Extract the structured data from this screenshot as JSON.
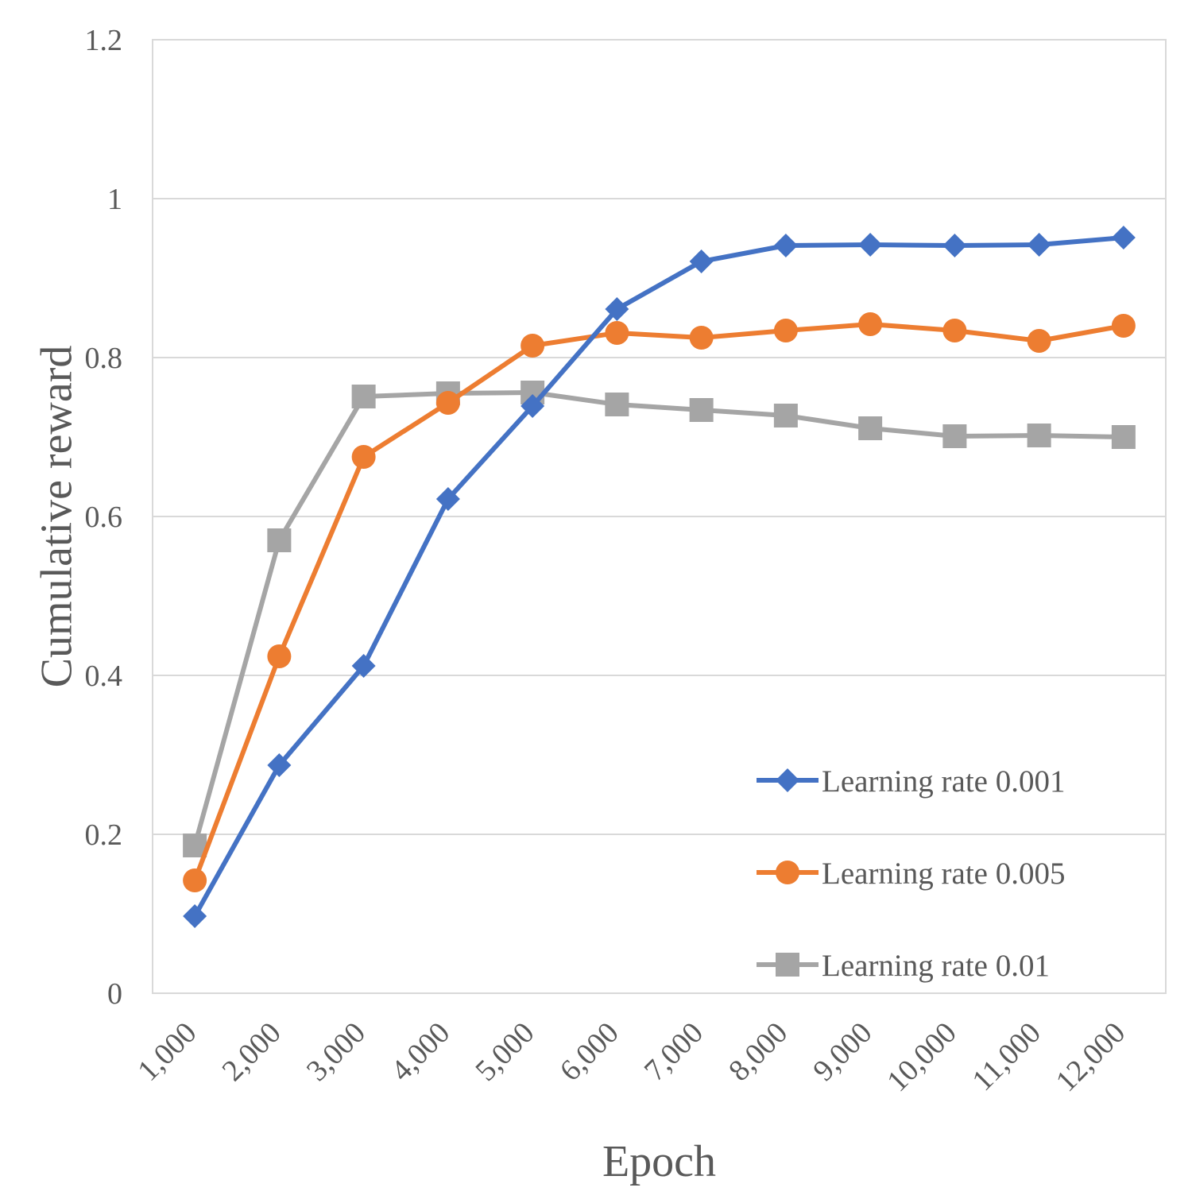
{
  "chart_data": {
    "type": "line",
    "title": "",
    "xlabel": "Epoch",
    "ylabel": "Cumulative reward",
    "categories": [
      "1,000",
      "2,000",
      "3,000",
      "4,000",
      "5,000",
      "6,000",
      "7,000",
      "8,000",
      "9,000",
      "10,000",
      "11,000",
      "12,000"
    ],
    "ylim": [
      0,
      1.2
    ],
    "yticks": [
      0,
      0.2,
      0.4,
      0.6,
      0.8,
      1,
      1.2
    ],
    "ytick_labels": [
      "0",
      "0.2",
      "0.4",
      "0.6",
      "0.8",
      "1",
      "1.2"
    ],
    "grid": true,
    "legend_position": "bottom-right",
    "series": [
      {
        "name": "Learning rate 0.001",
        "color": "#4472c4",
        "marker": "diamond",
        "values": [
          0.097,
          0.287,
          0.412,
          0.622,
          0.739,
          0.861,
          0.921,
          0.941,
          0.942,
          0.941,
          0.942,
          0.951
        ]
      },
      {
        "name": "Learning rate 0.005",
        "color": "#ed7d31",
        "marker": "circle",
        "values": [
          0.142,
          0.424,
          0.675,
          0.743,
          0.815,
          0.831,
          0.825,
          0.834,
          0.842,
          0.834,
          0.821,
          0.84
        ]
      },
      {
        "name": "Learning rate 0.01",
        "color": "#a5a5a5",
        "marker": "square",
        "values": [
          0.186,
          0.57,
          0.751,
          0.755,
          0.756,
          0.741,
          0.734,
          0.727,
          0.711,
          0.701,
          0.702,
          0.7
        ]
      }
    ]
  }
}
